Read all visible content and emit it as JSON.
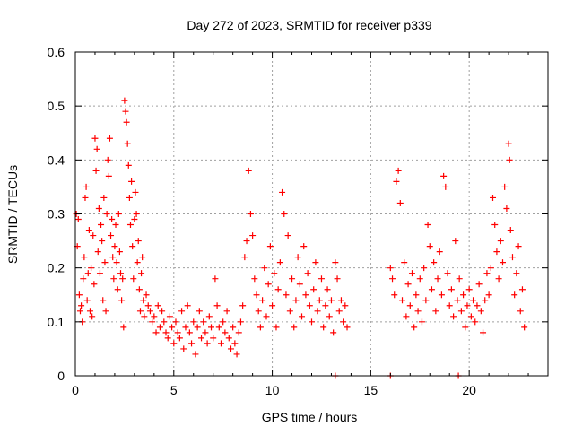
{
  "chart_data": {
    "type": "scatter",
    "title": "Day 272 of 2023, SRMTID for receiver p339",
    "xlabel": "GPS time / hours",
    "ylabel": "SRMTID / TECUs",
    "xlim": [
      0,
      24
    ],
    "ylim": [
      0,
      0.6
    ],
    "xticks": [
      0,
      5,
      10,
      15,
      20
    ],
    "xtick_labels": [
      "0",
      "5",
      "10",
      "15",
      "20"
    ],
    "yticks": [
      0,
      0.1,
      0.2,
      0.3,
      0.4,
      0.5,
      0.6
    ],
    "ytick_labels": [
      "0",
      "0.1",
      "0.2",
      "0.3",
      "0.4",
      "0.5",
      "0.6"
    ],
    "grid": true,
    "marker": "plus",
    "series_color": "#ff0000",
    "grid_color": "#a0a0a0",
    "series": [
      {
        "name": "SRMTID",
        "points": [
          [
            0.05,
            0.3
          ],
          [
            0.1,
            0.24
          ],
          [
            0.15,
            0.29
          ],
          [
            0.2,
            0.15
          ],
          [
            0.25,
            0.12
          ],
          [
            0.3,
            0.13
          ],
          [
            0.35,
            0.1
          ],
          [
            0.4,
            0.18
          ],
          [
            0.45,
            0.22
          ],
          [
            0.5,
            0.33
          ],
          [
            0.55,
            0.35
          ],
          [
            0.6,
            0.14
          ],
          [
            0.65,
            0.19
          ],
          [
            0.7,
            0.27
          ],
          [
            0.75,
            0.12
          ],
          [
            0.8,
            0.2
          ],
          [
            0.85,
            0.11
          ],
          [
            0.9,
            0.26
          ],
          [
            0.95,
            0.17
          ],
          [
            1.0,
            0.44
          ],
          [
            1.05,
            0.38
          ],
          [
            1.1,
            0.42
          ],
          [
            1.15,
            0.23
          ],
          [
            1.2,
            0.31
          ],
          [
            1.25,
            0.19
          ],
          [
            1.3,
            0.28
          ],
          [
            1.35,
            0.25
          ],
          [
            1.4,
            0.14
          ],
          [
            1.45,
            0.33
          ],
          [
            1.5,
            0.21
          ],
          [
            1.55,
            0.12
          ],
          [
            1.6,
            0.3
          ],
          [
            1.65,
            0.4
          ],
          [
            1.7,
            0.37
          ],
          [
            1.75,
            0.44
          ],
          [
            1.8,
            0.26
          ],
          [
            1.85,
            0.29
          ],
          [
            1.9,
            0.22
          ],
          [
            1.95,
            0.18
          ],
          [
            2.0,
            0.24
          ],
          [
            2.05,
            0.28
          ],
          [
            2.1,
            0.21
          ],
          [
            2.15,
            0.16
          ],
          [
            2.2,
            0.3
          ],
          [
            2.25,
            0.23
          ],
          [
            2.3,
            0.19
          ],
          [
            2.35,
            0.14
          ],
          [
            2.4,
            0.18
          ],
          [
            2.45,
            0.09
          ],
          [
            2.5,
            0.51
          ],
          [
            2.55,
            0.49
          ],
          [
            2.6,
            0.47
          ],
          [
            2.65,
            0.43
          ],
          [
            2.7,
            0.39
          ],
          [
            2.75,
            0.33
          ],
          [
            2.8,
            0.28
          ],
          [
            2.85,
            0.36
          ],
          [
            2.9,
            0.24
          ],
          [
            2.95,
            0.18
          ],
          [
            3.0,
            0.29
          ],
          [
            3.05,
            0.34
          ],
          [
            3.1,
            0.3
          ],
          [
            3.15,
            0.21
          ],
          [
            3.2,
            0.25
          ],
          [
            3.25,
            0.16
          ],
          [
            3.3,
            0.12
          ],
          [
            3.35,
            0.19
          ],
          [
            3.4,
            0.22
          ],
          [
            3.45,
            0.14
          ],
          [
            3.5,
            0.11
          ],
          [
            3.6,
            0.15
          ],
          [
            3.7,
            0.13
          ],
          [
            3.8,
            0.12
          ],
          [
            3.9,
            0.1
          ],
          [
            4.0,
            0.11
          ],
          [
            4.1,
            0.08
          ],
          [
            4.2,
            0.13
          ],
          [
            4.3,
            0.09
          ],
          [
            4.4,
            0.12
          ],
          [
            4.5,
            0.1
          ],
          [
            4.6,
            0.08
          ],
          [
            4.7,
            0.07
          ],
          [
            4.8,
            0.11
          ],
          [
            4.9,
            0.09
          ],
          [
            5.0,
            0.06
          ],
          [
            5.1,
            0.1
          ],
          [
            5.2,
            0.08
          ],
          [
            5.3,
            0.07
          ],
          [
            5.4,
            0.12
          ],
          [
            5.5,
            0.05
          ],
          [
            5.6,
            0.09
          ],
          [
            5.7,
            0.13
          ],
          [
            5.8,
            0.08
          ],
          [
            5.9,
            0.06
          ],
          [
            6.0,
            0.1
          ],
          [
            6.1,
            0.04
          ],
          [
            6.2,
            0.09
          ],
          [
            6.3,
            0.12
          ],
          [
            6.4,
            0.07
          ],
          [
            6.5,
            0.1
          ],
          [
            6.6,
            0.08
          ],
          [
            6.7,
            0.06
          ],
          [
            6.8,
            0.11
          ],
          [
            6.9,
            0.09
          ],
          [
            7.0,
            0.07
          ],
          [
            7.1,
            0.18
          ],
          [
            7.2,
            0.13
          ],
          [
            7.3,
            0.09
          ],
          [
            7.4,
            0.06
          ],
          [
            7.5,
            0.1
          ],
          [
            7.6,
            0.08
          ],
          [
            7.7,
            0.12
          ],
          [
            7.8,
            0.07
          ],
          [
            7.9,
            0.05
          ],
          [
            8.0,
            0.09
          ],
          [
            8.1,
            0.06
          ],
          [
            8.2,
            0.04
          ],
          [
            8.3,
            0.08
          ],
          [
            8.4,
            0.1
          ],
          [
            8.5,
            0.13
          ],
          [
            8.6,
            0.22
          ],
          [
            8.7,
            0.25
          ],
          [
            8.8,
            0.38
          ],
          [
            8.9,
            0.3
          ],
          [
            9.0,
            0.26
          ],
          [
            9.1,
            0.18
          ],
          [
            9.2,
            0.15
          ],
          [
            9.3,
            0.12
          ],
          [
            9.4,
            0.09
          ],
          [
            9.5,
            0.14
          ],
          [
            9.6,
            0.2
          ],
          [
            9.7,
            0.11
          ],
          [
            9.8,
            0.17
          ],
          [
            9.9,
            0.24
          ],
          [
            10.0,
            0.13
          ],
          [
            10.1,
            0.19
          ],
          [
            10.2,
            0.09
          ],
          [
            10.3,
            0.16
          ],
          [
            10.4,
            0.21
          ],
          [
            10.5,
            0.34
          ],
          [
            10.6,
            0.3
          ],
          [
            10.7,
            0.15
          ],
          [
            10.8,
            0.26
          ],
          [
            10.9,
            0.12
          ],
          [
            11.0,
            0.18
          ],
          [
            11.1,
            0.09
          ],
          [
            11.2,
            0.14
          ],
          [
            11.3,
            0.22
          ],
          [
            11.4,
            0.17
          ],
          [
            11.5,
            0.11
          ],
          [
            11.6,
            0.24
          ],
          [
            11.7,
            0.15
          ],
          [
            11.8,
            0.19
          ],
          [
            11.9,
            0.13
          ],
          [
            12.0,
            0.1
          ],
          [
            12.1,
            0.16
          ],
          [
            12.2,
            0.21
          ],
          [
            12.3,
            0.12
          ],
          [
            12.4,
            0.14
          ],
          [
            12.5,
            0.18
          ],
          [
            12.6,
            0.09
          ],
          [
            12.7,
            0.13
          ],
          [
            12.8,
            0.16
          ],
          [
            12.9,
            0.11
          ],
          [
            13.0,
            0.14
          ],
          [
            13.1,
            0.08
          ],
          [
            13.2,
            0.21
          ],
          [
            13.3,
            0.18
          ],
          [
            13.4,
            0.12
          ],
          [
            13.5,
            0.14
          ],
          [
            13.6,
            0.1
          ],
          [
            13.7,
            0.13
          ],
          [
            13.8,
            0.09
          ],
          [
            16.0,
            0.2
          ],
          [
            16.1,
            0.18
          ],
          [
            16.2,
            0.15
          ],
          [
            16.3,
            0.36
          ],
          [
            16.4,
            0.38
          ],
          [
            16.5,
            0.32
          ],
          [
            16.6,
            0.14
          ],
          [
            16.7,
            0.21
          ],
          [
            16.8,
            0.11
          ],
          [
            16.9,
            0.17
          ],
          [
            17.0,
            0.13
          ],
          [
            17.1,
            0.19
          ],
          [
            17.2,
            0.09
          ],
          [
            17.3,
            0.15
          ],
          [
            17.4,
            0.12
          ],
          [
            17.5,
            0.18
          ],
          [
            17.6,
            0.1
          ],
          [
            17.7,
            0.2
          ],
          [
            17.8,
            0.14
          ],
          [
            17.9,
            0.28
          ],
          [
            18.0,
            0.24
          ],
          [
            18.1,
            0.16
          ],
          [
            18.2,
            0.21
          ],
          [
            18.3,
            0.12
          ],
          [
            18.4,
            0.18
          ],
          [
            18.5,
            0.23
          ],
          [
            18.6,
            0.15
          ],
          [
            18.7,
            0.37
          ],
          [
            18.8,
            0.35
          ],
          [
            18.9,
            0.19
          ],
          [
            19.0,
            0.13
          ],
          [
            19.1,
            0.16
          ],
          [
            19.2,
            0.11
          ],
          [
            19.3,
            0.25
          ],
          [
            19.4,
            0.14
          ],
          [
            19.5,
            0.18
          ],
          [
            19.6,
            0.12
          ],
          [
            19.7,
            0.15
          ],
          [
            19.8,
            0.09
          ],
          [
            19.9,
            0.13
          ],
          [
            20.0,
            0.16
          ],
          [
            20.1,
            0.11
          ],
          [
            20.2,
            0.14
          ],
          [
            20.3,
            0.1
          ],
          [
            20.4,
            0.13
          ],
          [
            20.5,
            0.17
          ],
          [
            20.6,
            0.12
          ],
          [
            20.7,
            0.08
          ],
          [
            20.8,
            0.14
          ],
          [
            20.9,
            0.19
          ],
          [
            21.0,
            0.15
          ],
          [
            21.1,
            0.2
          ],
          [
            21.2,
            0.33
          ],
          [
            21.3,
            0.28
          ],
          [
            21.4,
            0.23
          ],
          [
            21.5,
            0.18
          ],
          [
            21.6,
            0.25
          ],
          [
            21.7,
            0.21
          ],
          [
            21.8,
            0.35
          ],
          [
            21.9,
            0.31
          ],
          [
            22.0,
            0.43
          ],
          [
            22.05,
            0.4
          ],
          [
            22.1,
            0.27
          ],
          [
            22.2,
            0.22
          ],
          [
            22.3,
            0.15
          ],
          [
            22.4,
            0.19
          ],
          [
            22.5,
            0.24
          ],
          [
            22.6,
            0.12
          ],
          [
            22.7,
            0.16
          ],
          [
            22.8,
            0.09
          ],
          [
            13.2,
            0.0
          ],
          [
            16.0,
            0.0
          ],
          [
            19.45,
            0.0
          ]
        ]
      }
    ]
  }
}
